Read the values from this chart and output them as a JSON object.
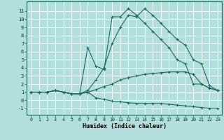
{
  "xlabel": "Humidex (Indice chaleur)",
  "bg_color": "#b2dfdb",
  "grid_color": "#c8e8e4",
  "line_color": "#1a6b5e",
  "x_ticks": [
    0,
    1,
    2,
    3,
    4,
    5,
    6,
    7,
    8,
    9,
    10,
    11,
    12,
    13,
    14,
    15,
    16,
    17,
    18,
    19,
    20,
    21,
    22,
    23
  ],
  "y_ticks": [
    -1,
    0,
    1,
    2,
    3,
    4,
    5,
    6,
    7,
    8,
    9,
    10,
    11
  ],
  "xlim": [
    -0.5,
    23.5
  ],
  "ylim": [
    -1.8,
    12.2
  ],
  "lines": [
    {
      "x": [
        0,
        1,
        2,
        3,
        4,
        5,
        6,
        7,
        8,
        9,
        10,
        11,
        12,
        13,
        14,
        15,
        16,
        17,
        18,
        19,
        20,
        21,
        22,
        23
      ],
      "y": [
        1.0,
        1.0,
        1.0,
        1.2,
        1.0,
        0.8,
        0.8,
        1.2,
        2.5,
        4.0,
        7.0,
        9.0,
        10.5,
        10.3,
        11.3,
        10.5,
        9.5,
        8.5,
        7.5,
        6.8,
        5.0,
        4.5,
        1.8,
        1.2
      ]
    },
    {
      "x": [
        0,
        1,
        2,
        3,
        4,
        5,
        6,
        7,
        8,
        9,
        10,
        11,
        12,
        13,
        14,
        15,
        16,
        17,
        18,
        19,
        20,
        21,
        22,
        23
      ],
      "y": [
        1.0,
        1.0,
        1.0,
        1.2,
        1.0,
        0.8,
        0.8,
        6.5,
        4.2,
        3.8,
        10.3,
        10.3,
        11.3,
        10.5,
        9.5,
        8.5,
        7.5,
        6.5,
        5.0,
        4.5,
        2.0,
        2.0,
        1.5,
        1.2
      ]
    },
    {
      "x": [
        0,
        1,
        2,
        3,
        4,
        5,
        6,
        7,
        8,
        9,
        10,
        11,
        12,
        13,
        14,
        15,
        16,
        17,
        18,
        19,
        20,
        21,
        22,
        23
      ],
      "y": [
        1.0,
        1.0,
        1.0,
        1.2,
        1.0,
        0.8,
        0.8,
        1.0,
        1.3,
        1.7,
        2.0,
        2.5,
        2.8,
        3.0,
        3.2,
        3.3,
        3.4,
        3.5,
        3.5,
        3.5,
        3.2,
        2.0,
        1.5,
        1.2
      ]
    },
    {
      "x": [
        0,
        1,
        2,
        3,
        4,
        5,
        6,
        7,
        8,
        9,
        10,
        11,
        12,
        13,
        14,
        15,
        16,
        17,
        18,
        19,
        20,
        21,
        22,
        23
      ],
      "y": [
        1.0,
        1.0,
        1.0,
        1.2,
        1.0,
        0.8,
        0.8,
        1.0,
        0.3,
        0.1,
        -0.1,
        -0.2,
        -0.3,
        -0.4,
        -0.4,
        -0.4,
        -0.4,
        -0.5,
        -0.6,
        -0.7,
        -0.8,
        -0.9,
        -1.0,
        -1.0
      ]
    }
  ]
}
